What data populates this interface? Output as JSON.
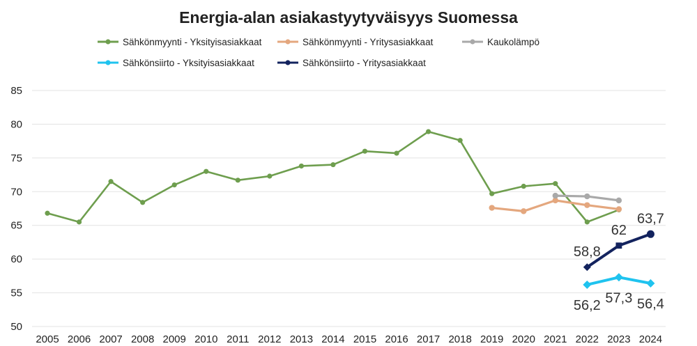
{
  "chart_data": {
    "type": "line",
    "title": "Energia-alan asiakastyytyväisyys Suomessa",
    "xlabel": "",
    "ylabel": "",
    "ylim": [
      50,
      85
    ],
    "yticks": [
      50,
      55,
      60,
      65,
      70,
      75,
      80,
      85
    ],
    "grid": true,
    "legend_position": "top",
    "categories": [
      "2005",
      "2006",
      "2007",
      "2008",
      "2009",
      "2010",
      "2011",
      "2012",
      "2013",
      "2014",
      "2015",
      "2016",
      "2017",
      "2018",
      "2019",
      "2020",
      "2021",
      "2022",
      "2023",
      "2024"
    ],
    "series": [
      {
        "name": "Sähkönmyynti - Yksityisasiakkaat",
        "color": "#6e9e4e",
        "marker": "circle",
        "values": [
          66.8,
          65.5,
          71.5,
          68.4,
          71.0,
          73.0,
          71.7,
          72.3,
          73.8,
          74.0,
          76.0,
          75.7,
          78.9,
          77.6,
          69.7,
          70.8,
          71.2,
          65.5,
          67.3,
          null
        ]
      },
      {
        "name": "Sähkönmyynti - Yritysasiakkaat",
        "color": "#e4a77e",
        "marker": "circle",
        "values": [
          null,
          null,
          null,
          null,
          null,
          null,
          null,
          null,
          null,
          null,
          null,
          null,
          null,
          null,
          67.6,
          67.1,
          68.7,
          68.0,
          67.4,
          null
        ]
      },
      {
        "name": "Kaukolämpö",
        "color": "#a9a9a9",
        "marker": "circle",
        "values": [
          null,
          null,
          null,
          null,
          null,
          null,
          null,
          null,
          null,
          null,
          null,
          null,
          null,
          null,
          null,
          null,
          69.4,
          69.3,
          68.7,
          null
        ]
      },
      {
        "name": "Sähkönsiirto - Yksityisasiakkaat",
        "color": "#1fc3ef",
        "marker": "diamond",
        "values": [
          null,
          null,
          null,
          null,
          null,
          null,
          null,
          null,
          null,
          null,
          null,
          null,
          null,
          null,
          null,
          null,
          null,
          56.2,
          57.3,
          56.4
        ],
        "data_labels": [
          "56,2",
          "57,3",
          "56,4"
        ]
      },
      {
        "name": "Sähkönsiirto - Yritysasiakkaat",
        "color": "#13235e",
        "marker": "mixed",
        "values": [
          null,
          null,
          null,
          null,
          null,
          null,
          null,
          null,
          null,
          null,
          null,
          null,
          null,
          null,
          null,
          null,
          null,
          58.8,
          62.0,
          63.7
        ],
        "data_labels": [
          "58,8",
          "62",
          "63,7"
        ]
      }
    ]
  }
}
